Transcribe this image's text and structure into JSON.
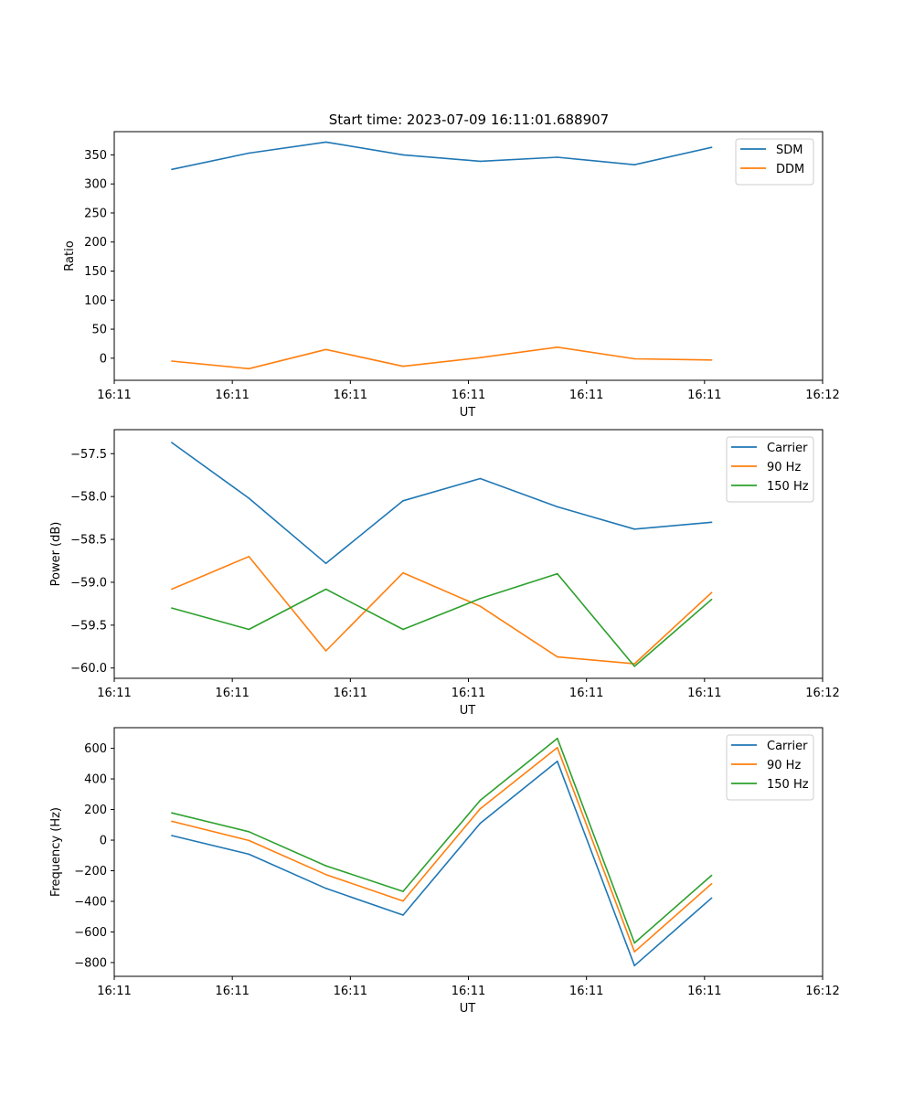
{
  "figure_title": "Start time: 2023-07-09 16:11:01.688907",
  "colors": {
    "blue": "#1f77b4",
    "orange": "#ff7f0e",
    "green": "#2ca02c"
  },
  "chart_data": [
    {
      "type": "line",
      "title": "Start time: 2023-07-09 16:11:01.688907",
      "xlabel": "UT",
      "ylabel": "Ratio",
      "xlim": [
        0,
        9
      ],
      "ylim": [
        -38,
        390
      ],
      "x_ticks": [
        0,
        1.5,
        3,
        4.5,
        6,
        7.5,
        9
      ],
      "x_tick_labels": [
        "16:11",
        "16:11",
        "16:11",
        "16:11",
        "16:11",
        "16:11",
        "16:12"
      ],
      "y_ticks": [
        0,
        50,
        100,
        150,
        200,
        250,
        300,
        350
      ],
      "y_tick_labels": [
        "0",
        "50",
        "100",
        "150",
        "200",
        "250",
        "300",
        "350"
      ],
      "legend_position": "top-right",
      "x": [
        0.73,
        1.71,
        2.69,
        3.67,
        4.65,
        5.63,
        6.61,
        7.59
      ],
      "series": [
        {
          "name": "SDM",
          "color": "#1f77b4",
          "values": [
            325,
            353,
            372,
            350,
            339,
            346,
            333,
            363
          ]
        },
        {
          "name": "DDM",
          "color": "#ff7f0e",
          "values": [
            -5,
            -18,
            15,
            -14,
            1,
            19,
            -1,
            -3
          ]
        }
      ]
    },
    {
      "type": "line",
      "title": "",
      "xlabel": "UT",
      "ylabel": "Power (dB)",
      "xlim": [
        0,
        9
      ],
      "ylim": [
        -60.12,
        -57.22
      ],
      "x_ticks": [
        0,
        1.5,
        3,
        4.5,
        6,
        7.5,
        9
      ],
      "x_tick_labels": [
        "16:11",
        "16:11",
        "16:11",
        "16:11",
        "16:11",
        "16:11",
        "16:12"
      ],
      "y_ticks": [
        -60.0,
        -59.5,
        -59.0,
        -58.5,
        -58.0,
        -57.5
      ],
      "y_tick_labels": [
        "−60.0",
        "−59.5",
        "−59.0",
        "−58.5",
        "−58.0",
        "−57.5"
      ],
      "legend_position": "top-right",
      "x": [
        0.73,
        1.71,
        2.69,
        3.67,
        4.65,
        5.63,
        6.61,
        7.59
      ],
      "series": [
        {
          "name": "Carrier",
          "color": "#1f77b4",
          "values": [
            -57.37,
            -58.02,
            -58.78,
            -58.05,
            -57.79,
            -58.12,
            -58.38,
            -58.3
          ]
        },
        {
          "name": "90 Hz",
          "color": "#ff7f0e",
          "values": [
            -59.08,
            -58.7,
            -59.8,
            -58.89,
            -59.28,
            -59.87,
            -59.95,
            -59.12
          ]
        },
        {
          "name": "150 Hz",
          "color": "#2ca02c",
          "values": [
            -59.3,
            -59.55,
            -59.08,
            -59.55,
            -59.19,
            -58.9,
            -59.98,
            -59.2
          ]
        }
      ]
    },
    {
      "type": "line",
      "title": "",
      "xlabel": "UT",
      "ylabel": "Frequency (Hz)",
      "xlim": [
        0,
        9
      ],
      "ylim": [
        -890,
        735
      ],
      "x_ticks": [
        0,
        1.5,
        3,
        4.5,
        6,
        7.5,
        9
      ],
      "x_tick_labels": [
        "16:11",
        "16:11",
        "16:11",
        "16:11",
        "16:11",
        "16:11",
        "16:12"
      ],
      "y_ticks": [
        -800,
        -600,
        -400,
        -200,
        0,
        200,
        400,
        600
      ],
      "y_tick_labels": [
        "−800",
        "−600",
        "−400",
        "−200",
        "0",
        "200",
        "400",
        "600"
      ],
      "legend_position": "top-right",
      "x": [
        0.73,
        1.71,
        2.69,
        3.67,
        4.65,
        5.63,
        6.61,
        7.59
      ],
      "series": [
        {
          "name": "Carrier",
          "color": "#1f77b4",
          "values": [
            30,
            -92,
            -315,
            -490,
            110,
            515,
            -820,
            -378
          ]
        },
        {
          "name": "90 Hz",
          "color": "#ff7f0e",
          "values": [
            123,
            -2,
            -225,
            -398,
            205,
            605,
            -730,
            -285
          ]
        },
        {
          "name": "150 Hz",
          "color": "#2ca02c",
          "values": [
            178,
            55,
            -168,
            -335,
            260,
            665,
            -672,
            -230
          ]
        }
      ]
    }
  ]
}
